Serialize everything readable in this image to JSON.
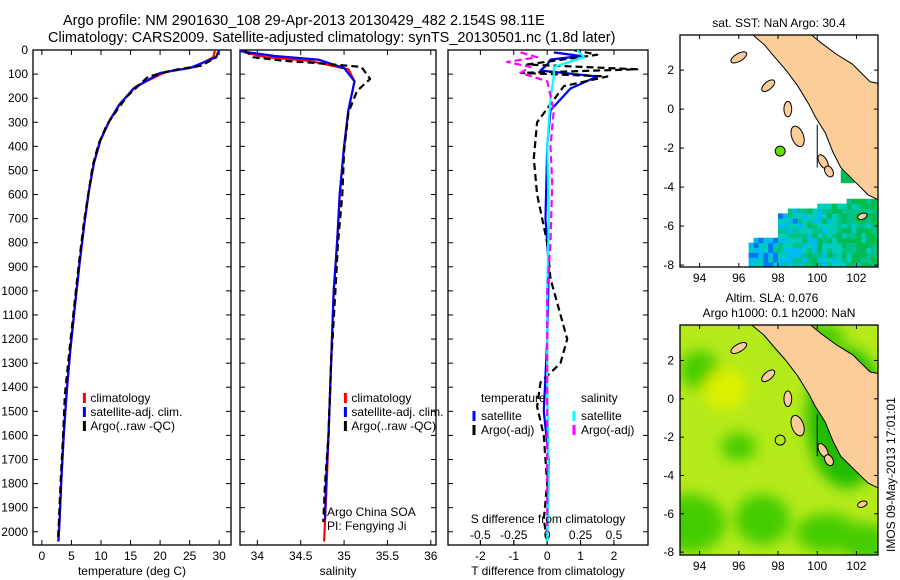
{
  "title": {
    "line1": "Argo profile: NM 2901630_108 29-Apr-2013 20130429_482 2.154S 98.11E",
    "line2": "Climatology: CARS2009. Satellite-adjusted climatology: synTS_20130501.nc (1.8d later)"
  },
  "colors": {
    "climatology": "#ff0000",
    "satellite": "#0000ff",
    "argo": "#000000",
    "s_satellite": "#00ffff",
    "s_argo": "#ff00ff",
    "land": "#fccc99",
    "argo_dot": "#66dd00"
  },
  "timestamp": "IMOS 09-May-2013 17:01:01",
  "chart_data": [
    {
      "type": "line",
      "name": "temperature",
      "xlabel": "temperature (deg C)",
      "xlim": [
        -1.5,
        32
      ],
      "ylim": [
        2055,
        0
      ],
      "xticks": [
        0,
        5,
        10,
        15,
        20,
        25,
        30
      ],
      "yticks": [
        0,
        100,
        200,
        300,
        400,
        500,
        600,
        700,
        800,
        900,
        1000,
        1100,
        1200,
        1300,
        1400,
        1500,
        1600,
        1700,
        1800,
        1900,
        2000
      ],
      "legend": {
        "placement": "lower-middle",
        "entries": [
          "climatology",
          "satellite-adj. clim.",
          "Argo(..raw -QC)"
        ]
      },
      "series": [
        {
          "name": "climatology",
          "style": "solid",
          "color": "#ff0000",
          "points": [
            [
              29.3,
              0
            ],
            [
              29,
              30
            ],
            [
              26,
              70
            ],
            [
              21,
              90
            ],
            [
              16,
              150
            ],
            [
              13.3,
              220
            ],
            [
              11.5,
              290
            ],
            [
              10,
              370
            ],
            [
              8.8,
              470
            ],
            [
              8,
              580
            ],
            [
              7.2,
              720
            ],
            [
              6.4,
              880
            ],
            [
              5.6,
              1060
            ],
            [
              4.8,
              1250
            ],
            [
              4.2,
              1420
            ],
            [
              3.7,
              1600
            ],
            [
              3.3,
              1780
            ],
            [
              3,
              1950
            ],
            [
              2.8,
              2040
            ]
          ]
        },
        {
          "name": "satellite-adj. clim.",
          "style": "solid",
          "color": "#0000ff",
          "points": [
            [
              30,
              0
            ],
            [
              29.5,
              30
            ],
            [
              25,
              75
            ],
            [
              20,
              95
            ],
            [
              15.5,
              160
            ],
            [
              13,
              230
            ],
            [
              11.3,
              300
            ],
            [
              9.8,
              380
            ],
            [
              8.8,
              470
            ],
            [
              8,
              580
            ],
            [
              7.2,
              720
            ],
            [
              6.4,
              880
            ],
            [
              5.6,
              1060
            ],
            [
              4.8,
              1250
            ],
            [
              4.2,
              1420
            ],
            [
              3.7,
              1600
            ],
            [
              3.3,
              1780
            ],
            [
              3,
              1950
            ],
            [
              2.8,
              2040
            ]
          ]
        },
        {
          "name": "Argo(..raw -QC)",
          "style": "dashed",
          "color": "#000000",
          "points": [
            [
              29.8,
              10
            ],
            [
              29.5,
              30
            ],
            [
              27,
              65
            ],
            [
              23,
              80
            ],
            [
              18,
              110
            ],
            [
              14.5,
              190
            ],
            [
              13,
              240
            ],
            [
              11,
              310
            ],
            [
              9.6,
              390
            ],
            [
              8.6,
              480
            ],
            [
              7.9,
              590
            ],
            [
              7.1,
              720
            ],
            [
              6.2,
              900
            ],
            [
              5.4,
              1080
            ],
            [
              4.6,
              1260
            ],
            [
              3.9,
              1430
            ],
            [
              3.6,
              1600
            ],
            [
              3.2,
              1780
            ],
            [
              2.9,
              1950
            ],
            [
              2.7,
              2040
            ]
          ]
        }
      ]
    },
    {
      "type": "line",
      "name": "salinity",
      "xlabel": "salinity",
      "xlim": [
        33.8,
        36.06
      ],
      "ylim": [
        2055,
        0
      ],
      "xticks": [
        34,
        34.5,
        35,
        35.5,
        36
      ],
      "legend": {
        "placement": "lower-middle",
        "entries": [
          "climatology",
          "satellite-adj. clim.",
          "Argo(..raw -QC)"
        ]
      },
      "annotation": [
        "Argo China SOA",
        "PI: Fengying Ji"
      ],
      "series": [
        {
          "name": "climatology",
          "style": "solid",
          "color": "#ff0000",
          "points": [
            [
              33.85,
              10
            ],
            [
              34.1,
              30
            ],
            [
              34.6,
              45
            ],
            [
              35.05,
              80
            ],
            [
              35.12,
              130
            ],
            [
              35.05,
              250
            ],
            [
              35.0,
              400
            ],
            [
              34.95,
              600
            ],
            [
              34.92,
              800
            ],
            [
              34.88,
              1000
            ],
            [
              34.85,
              1300
            ],
            [
              34.82,
              1600
            ],
            [
              34.8,
              1800
            ],
            [
              34.77,
              2040
            ]
          ]
        },
        {
          "name": "satellite-adj. clim.",
          "style": "solid",
          "color": "#0000ff",
          "points": [
            [
              33.8,
              5
            ],
            [
              34.2,
              25
            ],
            [
              34.7,
              40
            ],
            [
              35.0,
              75
            ],
            [
              35.12,
              130
            ],
            [
              35.05,
              250
            ],
            [
              35.0,
              400
            ],
            [
              34.95,
              600
            ],
            [
              34.92,
              800
            ],
            [
              34.88,
              1000
            ],
            [
              34.85,
              1300
            ],
            [
              34.82,
              1600
            ],
            [
              34.79,
              1800
            ],
            [
              34.78,
              1950
            ]
          ]
        },
        {
          "name": "Argo(..raw -QC)",
          "style": "dashed",
          "color": "#000000",
          "points": [
            [
              33.85,
              0
            ],
            [
              33.95,
              30
            ],
            [
              34.3,
              45
            ],
            [
              34.7,
              55
            ],
            [
              35.2,
              70
            ],
            [
              35.3,
              120
            ],
            [
              35.15,
              170
            ],
            [
              35.05,
              260
            ],
            [
              35.0,
              420
            ],
            [
              34.98,
              600
            ],
            [
              34.93,
              800
            ],
            [
              34.9,
              1000
            ],
            [
              34.85,
              1300
            ],
            [
              34.82,
              1600
            ],
            [
              34.78,
              1800
            ],
            [
              34.76,
              1960
            ]
          ]
        }
      ]
    },
    {
      "type": "line",
      "name": "difference",
      "xlabel": "T difference from climatology",
      "xlabel2": "S difference from climatology",
      "xlim": [
        -2.97,
        3.02
      ],
      "ylim": [
        2055,
        0
      ],
      "xticks": [
        -2,
        -1,
        0,
        1,
        2
      ],
      "xticks2": [
        -0.5,
        -0.25,
        0,
        0.25,
        0.5
      ],
      "xticks2_labels": [
        "-0.5",
        "-0.25",
        "0",
        "0.25",
        "0.5"
      ],
      "legend": {
        "placement": "lower-middle",
        "headers": [
          "temperature",
          "salinity"
        ],
        "entries": [
          "satellite",
          "Argo(-adj)",
          "satellite",
          "Argo(-adj)"
        ]
      },
      "series": [
        {
          "name": "T satellite",
          "style": "solid",
          "color": "#0000ff",
          "points": [
            [
              0.2,
              10
            ],
            [
              1.0,
              25
            ],
            [
              0.1,
              40
            ],
            [
              0.0,
              60
            ],
            [
              -0.2,
              85
            ],
            [
              1.5,
              110
            ],
            [
              0.7,
              160
            ],
            [
              0.1,
              250
            ],
            [
              0.0,
              400
            ],
            [
              -0.05,
              700
            ],
            [
              0.05,
              900
            ],
            [
              0.0,
              1200
            ],
            [
              -0.1,
              1500
            ],
            [
              0.05,
              1700
            ],
            [
              0.0,
              2040
            ]
          ]
        },
        {
          "name": "T Argo(-adj)",
          "style": "dashed",
          "color": "#000000",
          "points": [
            [
              0.8,
              0
            ],
            [
              1.5,
              20
            ],
            [
              -0.6,
              60
            ],
            [
              2.7,
              80
            ],
            [
              -0.8,
              95
            ],
            [
              1.8,
              110
            ],
            [
              0.5,
              150
            ],
            [
              -0.3,
              300
            ],
            [
              -0.4,
              450
            ],
            [
              -0.3,
              600
            ],
            [
              0.0,
              800
            ],
            [
              0.1,
              950
            ],
            [
              0.3,
              1050
            ],
            [
              0.6,
              1200
            ],
            [
              0.4,
              1300
            ],
            [
              -0.2,
              1380
            ],
            [
              -0.3,
              1480
            ],
            [
              -0.1,
              1600
            ],
            [
              0.0,
              1800
            ],
            [
              -0.1,
              1950
            ],
            [
              0.0,
              2040
            ]
          ]
        },
        {
          "name": "S satellite",
          "style": "solid",
          "color": "#00ffff",
          "points": [
            [
              0.9,
              0
            ],
            [
              1.1,
              30
            ],
            [
              0.2,
              70
            ],
            [
              0.2,
              110
            ],
            [
              0.1,
              200
            ],
            [
              0.0,
              400
            ],
            [
              0.05,
              700
            ],
            [
              0.0,
              1000
            ],
            [
              0.0,
              1400
            ],
            [
              0.05,
              1800
            ],
            [
              0.0,
              2040
            ]
          ]
        },
        {
          "name": "S Argo(-adj)",
          "style": "dashed",
          "color": "#ff00ff",
          "points": [
            [
              -0.8,
              10
            ],
            [
              -0.3,
              30
            ],
            [
              -1.2,
              50
            ],
            [
              -0.5,
              70
            ],
            [
              -0.8,
              95
            ],
            [
              0.0,
              130
            ],
            [
              0.2,
              250
            ],
            [
              0.1,
              400
            ],
            [
              0.15,
              550
            ],
            [
              0.1,
              800
            ],
            [
              0.0,
              1000
            ],
            [
              0.0,
              1500
            ],
            [
              0.0,
              2000
            ]
          ]
        }
      ]
    }
  ],
  "maps": [
    {
      "title": "sat. SST: NaN Argo: 30.4",
      "lonlim": [
        93.0,
        103.1
      ],
      "latlim": [
        -8.1,
        3.8
      ],
      "lonticks": [
        94,
        96,
        98,
        100,
        102
      ],
      "latticks": [
        2,
        0,
        -2,
        -4,
        -6,
        -8
      ],
      "argo_position": [
        98.11,
        -2.154
      ]
    },
    {
      "title1": "Altim. SLA: 0.076",
      "title2": "Argo h1000: 0.1 h2000: NaN",
      "lonlim": [
        93.0,
        103.1
      ],
      "latlim": [
        -8.15,
        3.85
      ],
      "lonticks": [
        94,
        96,
        98,
        100,
        102
      ],
      "latticks": [
        2,
        0,
        -2,
        -4,
        -6,
        -8
      ],
      "argo_position": [
        98.11,
        -2.154
      ]
    }
  ]
}
